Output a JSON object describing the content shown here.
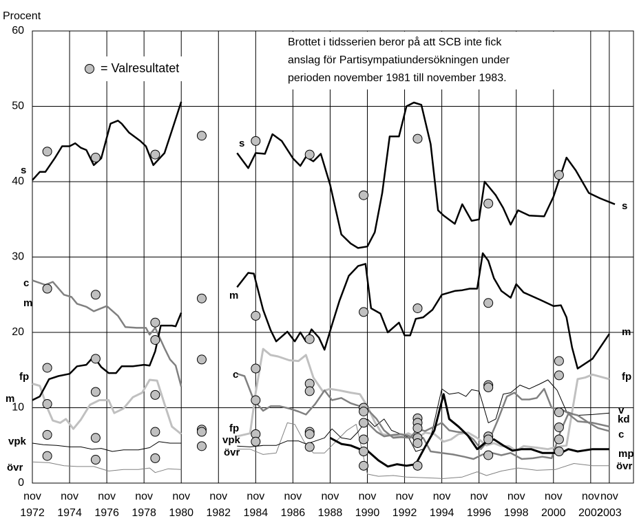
{
  "chart_data": {
    "type": "line",
    "ylabel": "Procent",
    "xlim": [
      1972.9,
      2005.2
    ],
    "ylim": [
      0,
      60
    ],
    "yticks": [
      0,
      10,
      20,
      30,
      40,
      50,
      60
    ],
    "xticks": [
      {
        "value": 1972.9,
        "label": "nov 1972"
      },
      {
        "value": 1974.9,
        "label": "nov 1974"
      },
      {
        "value": 1976.9,
        "label": "nov 1976"
      },
      {
        "value": 1978.9,
        "label": "nov 1978"
      },
      {
        "value": 1980.9,
        "label": "nov 1980"
      },
      {
        "value": 1982.9,
        "label": "nov 1982"
      },
      {
        "value": 1984.9,
        "label": "nov 1984"
      },
      {
        "value": 1986.9,
        "label": "nov 1986"
      },
      {
        "value": 1988.9,
        "label": "nov 1988"
      },
      {
        "value": 1990.9,
        "label": "nov 1990"
      },
      {
        "value": 1992.9,
        "label": "nov 1992"
      },
      {
        "value": 1994.9,
        "label": "nov 1994"
      },
      {
        "value": 1996.9,
        "label": "nov 1996"
      },
      {
        "value": 1998.9,
        "label": "nov 1998"
      },
      {
        "value": 2000.9,
        "label": "nov 2000"
      },
      {
        "value": 2002.9,
        "label": "nov 2002"
      },
      {
        "value": 2003.9,
        "label": "nov 2003"
      }
    ],
    "grid": true,
    "annotation": [
      "Brottet i tidsserien beror på att SCB inte fick",
      "anslag för Partisympatiundersökningen under",
      "perioden november 1981 till november 1983."
    ],
    "series": [
      {
        "name": "s",
        "color": "#000000",
        "x": [
          1972.9,
          1973.3,
          1973.6,
          1974.1,
          1974.5,
          1974.9,
          1975.2,
          1975.5,
          1975.8,
          1976.2,
          1976.6,
          1977.1,
          1977.5,
          1977.7,
          1978.1,
          1978.7,
          1979.0,
          1979.4,
          1980.0,
          1980.4,
          1980.9,
          1982.9,
          1983.9,
          1984.5,
          1984.9,
          1985.4,
          1985.8,
          1986.3,
          1986.9,
          1987.3,
          1987.6,
          1988.0,
          1988.4,
          1988.9,
          1989.5,
          1990.0,
          1990.4,
          1990.9,
          1991.3,
          1991.7,
          1992.1,
          1992.6,
          1993.0,
          1993.4,
          1993.8,
          1994.3,
          1994.7,
          1995.0,
          1995.6,
          1996.0,
          1996.5,
          1996.9,
          1997.2,
          1997.8,
          1998.2,
          1998.6,
          1999.0,
          1999.6,
          2000.4,
          2000.9,
          2001.6,
          2002.1,
          2002.8,
          2003.4,
          2004.2
        ],
        "values": [
          40.2,
          41.3,
          41.3,
          43.1,
          44.7,
          44.7,
          45.1,
          44.5,
          44.2,
          42.2,
          43.1,
          47.7,
          48.1,
          47.7,
          46.5,
          45.4,
          44.7,
          42.2,
          43.8,
          46.8,
          50.6,
          null,
          43.8,
          41.8,
          43.8,
          43.7,
          46.3,
          45.4,
          43.1,
          42.1,
          43.3,
          42.7,
          43.7,
          39.6,
          33.0,
          31.8,
          31.2,
          31.4,
          33.3,
          38.5,
          46.0,
          46.0,
          50.0,
          50.5,
          50.2,
          45.0,
          36.2,
          35.5,
          34.4,
          37.0,
          34.8,
          35.0,
          40.0,
          38.2,
          36.5,
          34.3,
          36.2,
          35.5,
          35.4,
          38.0,
          43.2,
          41.5,
          38.5,
          37.8,
          37.0
        ]
      },
      {
        "name": "m",
        "color": "#000000",
        "x": [
          1972.9,
          1973.3,
          1973.8,
          1974.3,
          1974.9,
          1975.3,
          1975.8,
          1976.2,
          1976.6,
          1977.0,
          1977.4,
          1977.7,
          1978.3,
          1978.9,
          1979.2,
          1979.5,
          1979.8,
          1980.4,
          1980.6,
          1980.9,
          1982.9,
          1983.9,
          1984.5,
          1984.8,
          1985.3,
          1985.7,
          1986.0,
          1986.6,
          1987.0,
          1987.3,
          1987.6,
          1987.9,
          1988.3,
          1988.6,
          1989.0,
          1989.4,
          1989.9,
          1990.4,
          1990.8,
          1991.1,
          1991.6,
          1992.0,
          1992.6,
          1992.9,
          1993.2,
          1993.5,
          1993.9,
          1994.4,
          1994.9,
          1995.6,
          1996.0,
          1996.4,
          1996.8,
          1997.1,
          1997.4,
          1997.7,
          1998.1,
          1998.6,
          1998.9,
          1999.3,
          2000.2,
          2000.9,
          2001.3,
          2001.6,
          2001.9,
          2002.2,
          2003.0,
          2003.9
        ],
        "values": [
          11.0,
          11.5,
          13.8,
          14.2,
          14.5,
          15.5,
          15.7,
          16.8,
          15.4,
          14.6,
          14.6,
          15.5,
          15.5,
          15.7,
          15.6,
          17.5,
          20.9,
          20.9,
          20.8,
          22.6,
          null,
          26.0,
          27.9,
          27.8,
          23.0,
          20.3,
          18.8,
          20.1,
          18.8,
          20.0,
          18.8,
          20.4,
          19.3,
          17.7,
          21.0,
          24.2,
          27.5,
          28.8,
          29.1,
          23.2,
          22.5,
          20.0,
          21.3,
          19.6,
          19.6,
          21.8,
          22.0,
          23.0,
          25.0,
          25.5,
          25.6,
          25.8,
          25.8,
          30.5,
          29.5,
          27.2,
          25.5,
          24.6,
          26.4,
          25.3,
          24.3,
          23.5,
          23.6,
          22.0,
          18.0,
          15.2,
          16.5,
          19.8
        ]
      },
      {
        "name": "c",
        "color": "#808080",
        "x": [
          1972.9,
          1973.6,
          1974.0,
          1974.6,
          1975.0,
          1975.3,
          1975.8,
          1976.2,
          1976.9,
          1977.5,
          1977.9,
          1978.5,
          1979.0,
          1979.2,
          1979.5,
          1980.0,
          1980.3,
          1980.6,
          1980.9,
          1982.9,
          1983.9,
          1984.3,
          1984.8,
          1985.3,
          1985.7,
          1986.2,
          1986.7,
          1987.2,
          1987.6,
          1988.1,
          1988.6,
          1989.0,
          1989.5,
          1990.0,
          1990.5,
          1990.9,
          1991.4,
          1991.8,
          1992.3,
          1992.7,
          1993.2,
          1993.6,
          1994.0,
          1994.5,
          1994.9,
          1995.3,
          1995.7,
          1996.1,
          1996.6,
          1997.0,
          1997.5,
          1997.9,
          1998.4,
          1998.8,
          1999.2,
          1999.6,
          2000.0,
          2000.4,
          2000.8,
          2001.3,
          2001.7,
          2002.2,
          2002.8,
          2003.3,
          2003.9
        ],
        "values": [
          26.9,
          26.3,
          26.7,
          25.0,
          24.7,
          23.8,
          23.4,
          22.8,
          23.5,
          22.2,
          20.7,
          20.6,
          20.6,
          19.7,
          20.6,
          17.9,
          16.4,
          15.6,
          12.8,
          null,
          14.5,
          14.2,
          11.0,
          9.6,
          10.2,
          10.2,
          9.9,
          9.5,
          9.1,
          10.5,
          12.3,
          11.0,
          11.3,
          10.6,
          10.2,
          9.8,
          8.5,
          7.0,
          6.0,
          6.1,
          6.0,
          7.2,
          6.9,
          7.5,
          8.0,
          7.0,
          6.8,
          6.7,
          5.8,
          4.5,
          6.0,
          8.3,
          11.5,
          12.0,
          11.1,
          11.1,
          11.3,
          12.5,
          10.0,
          9.8,
          9.3,
          9.0,
          8.0,
          7.3,
          6.9
        ]
      },
      {
        "name": "fp",
        "color": "#c0c0c0",
        "x": [
          1972.9,
          1973.3,
          1973.7,
          1974.0,
          1974.4,
          1974.7,
          1975.1,
          1975.5,
          1976.0,
          1976.5,
          1977.0,
          1977.3,
          1977.8,
          1978.3,
          1978.8,
          1979.2,
          1979.6,
          1980.0,
          1980.4,
          1980.9,
          1982.9,
          1983.9,
          1984.6,
          1984.9,
          1985.3,
          1985.7,
          1986.1,
          1986.7,
          1987.2,
          1987.6,
          1988.0,
          1988.5,
          1988.9,
          1989.4,
          1990.0,
          1990.5,
          1990.9,
          1991.3,
          1991.7,
          1992.2,
          1992.7,
          1993.1,
          1993.6,
          1994.0,
          1994.5,
          1995.0,
          1995.4,
          1995.8,
          1996.3,
          1996.8,
          1997.3,
          1997.7,
          1998.1,
          1998.5,
          1998.9,
          1999.3,
          2000.0,
          2000.6,
          2001.1,
          2001.6,
          2002.2,
          2002.6,
          2003.0,
          2003.9
        ],
        "values": [
          13.2,
          12.9,
          10.0,
          8.3,
          8.0,
          8.5,
          7.2,
          8.4,
          10.4,
          11.0,
          11.0,
          9.3,
          9.9,
          11.4,
          12.0,
          13.7,
          13.6,
          10.5,
          7.5,
          6.5,
          null,
          6.2,
          6.6,
          12.0,
          17.8,
          17.0,
          16.8,
          16.3,
          16.2,
          17.0,
          14.0,
          12.2,
          12.5,
          12.3,
          12.0,
          11.8,
          10.2,
          8.1,
          6.5,
          6.3,
          6.2,
          6.6,
          6.0,
          6.7,
          6.5,
          5.5,
          5.8,
          6.5,
          6.7,
          6.0,
          5.0,
          5.3,
          4.9,
          4.9,
          4.3,
          4.9,
          4.7,
          4.5,
          4.8,
          5.0,
          13.8,
          14.0,
          14.4,
          13.8
        ]
      },
      {
        "name": "vpk",
        "end_label": "v",
        "color": "#000000",
        "x": [
          1972.9,
          1973.5,
          1974.2,
          1974.9,
          1975.5,
          1976.1,
          1976.6,
          1977.2,
          1977.8,
          1978.6,
          1979.2,
          1979.7,
          1980.3,
          1980.9,
          1982.9,
          1983.9,
          1984.6,
          1985.3,
          1986.0,
          1986.6,
          1987.2,
          1987.6,
          1988.0,
          1988.6,
          1989.0,
          1989.5,
          1990.0,
          1990.4,
          1990.9,
          1991.3,
          1991.8,
          1992.2,
          1992.7,
          1993.1,
          1993.5,
          1993.9,
          1994.3,
          1994.9,
          1995.3,
          1995.8,
          1996.2,
          1996.5,
          1996.9,
          1997.4,
          1997.8,
          1998.2,
          1998.6,
          1999.1,
          1999.6,
          2000.2,
          2000.6,
          2001.1,
          2001.6,
          2002.2,
          2003.0,
          2003.9
        ],
        "values": [
          5.3,
          5.1,
          5.0,
          4.8,
          4.8,
          4.5,
          4.6,
          4.2,
          4.4,
          4.4,
          4.7,
          5.5,
          5.3,
          5.3,
          null,
          4.9,
          4.8,
          5.0,
          5.0,
          5.6,
          5.6,
          5.2,
          5.5,
          6.0,
          7.2,
          6.0,
          5.8,
          6.8,
          8.5,
          7.5,
          8.5,
          7.0,
          6.5,
          6.1,
          4.2,
          4.5,
          6.0,
          12.5,
          11.8,
          12.0,
          11.5,
          12.4,
          12.2,
          8.0,
          8.5,
          11.8,
          12.0,
          13.0,
          12.5,
          13.2,
          13.7,
          12.3,
          9.5,
          9.0,
          9.1,
          9.3
        ]
      },
      {
        "name": "kd",
        "color": "#808080",
        "x": [
          1990.9,
          1991.4,
          1991.8,
          1992.3,
          1992.7,
          1993.1,
          1993.5,
          1993.9,
          1994.3,
          1994.9,
          1995.5,
          1996.1,
          1996.6,
          1997.1,
          1997.6,
          1998.1,
          1998.6,
          1999.2,
          1999.8,
          2000.3,
          2000.8,
          2001.3,
          2001.7,
          2002.2,
          2003.0,
          2003.9
        ],
        "values": [
          8.0,
          6.8,
          6.2,
          6.4,
          6.5,
          6.3,
          5.8,
          6.0,
          4.2,
          4.0,
          3.8,
          3.5,
          3.2,
          3.8,
          4.0,
          3.7,
          4.0,
          3.2,
          3.3,
          3.5,
          3.3,
          7.0,
          9.2,
          8.2,
          8.0,
          7.5
        ]
      },
      {
        "name": "mp",
        "color": "#000000",
        "x": [
          1988.9,
          1989.5,
          1990.0,
          1990.5,
          1990.9,
          1991.5,
          1992.0,
          1992.5,
          1993.0,
          1993.5,
          1994.0,
          1994.5,
          1995.0,
          1995.3,
          1995.8,
          1996.3,
          1996.8,
          1997.3,
          1997.7,
          1998.2,
          1998.7,
          1999.2,
          1999.7,
          2000.3,
          2000.8,
          2001.3,
          2001.7,
          2002.2,
          2003.0,
          2003.9
        ],
        "values": [
          6.0,
          5.2,
          5.0,
          4.5,
          4.3,
          3.0,
          2.2,
          2.5,
          2.3,
          2.5,
          4.8,
          7.0,
          11.8,
          8.5,
          7.5,
          6.3,
          4.5,
          5.5,
          5.8,
          5.0,
          4.3,
          4.5,
          4.5,
          4.0,
          4.0,
          4.0,
          4.5,
          4.2,
          4.5,
          4.5
        ]
      },
      {
        "name": "övr",
        "color": "#808080",
        "x": [
          1972.9,
          1973.8,
          1974.6,
          1975.3,
          1976.2,
          1977.0,
          1977.8,
          1978.6,
          1979.2,
          1979.5,
          1980.2,
          1980.9,
          1982.9,
          1983.9,
          1984.6,
          1985.3,
          1986.0,
          1986.6,
          1987.0,
          1987.5,
          1988.0,
          1988.6,
          1989.2,
          1989.8,
          1990.3,
          1990.9,
          1991.5,
          1992.3,
          1993.0,
          1994.0,
          1995.0,
          1996.0,
          1996.8,
          1997.3,
          1998.1,
          1999.0,
          2000.0,
          2001.0,
          2002.0,
          2003.0,
          2003.9
        ],
        "values": [
          2.8,
          2.7,
          2.3,
          2.2,
          2.2,
          1.6,
          1.8,
          1.8,
          2.0,
          1.4,
          1.9,
          1.8,
          null,
          4.5,
          4.5,
          3.8,
          4.0,
          8.0,
          7.8,
          5.5,
          4.0,
          4.0,
          5.5,
          7.0,
          7.8,
          1.2,
          0.9,
          1.0,
          0.8,
          0.7,
          0.6,
          0.8,
          1.5,
          1.0,
          1.6,
          2.0,
          1.7,
          1.8,
          2.6,
          2.3,
          2.3
        ]
      }
    ],
    "markers": {
      "name": "= Valresultatet",
      "color": "#c0c0c0",
      "x": [
        1973.7,
        1973.7,
        1973.7,
        1973.7,
        1973.7,
        1973.7,
        1976.3,
        1976.3,
        1976.3,
        1976.3,
        1976.3,
        1976.3,
        1979.5,
        1979.5,
        1979.5,
        1979.5,
        1979.5,
        1979.5,
        1982.0,
        1982.0,
        1982.0,
        1982.0,
        1982.0,
        1982.0,
        1984.9,
        1984.9,
        1984.9,
        1984.9,
        1984.9,
        1984.9,
        1987.8,
        1987.8,
        1987.8,
        1987.8,
        1987.8,
        1987.8,
        1987.8,
        1990.7,
        1990.7,
        1990.7,
        1990.7,
        1990.7,
        1990.7,
        1990.7,
        1990.7,
        1993.6,
        1993.6,
        1993.6,
        1993.6,
        1993.6,
        1993.6,
        1993.6,
        1993.6,
        1997.4,
        1997.4,
        1997.4,
        1997.4,
        1997.4,
        1997.4,
        1997.4,
        2001.2,
        2001.2,
        2001.2,
        2001.2,
        2001.2,
        2001.2,
        2001.2
      ],
      "values": [
        44.0,
        25.8,
        15.3,
        10.5,
        6.4,
        3.6,
        43.2,
        25.0,
        16.5,
        12.1,
        6.0,
        3.1,
        43.6,
        21.3,
        19.0,
        11.7,
        6.8,
        3.3,
        46.1,
        24.5,
        16.4,
        7.1,
        6.8,
        4.9,
        45.4,
        22.2,
        15.2,
        11.0,
        6.5,
        5.5,
        43.6,
        19.1,
        13.2,
        12.2,
        6.8,
        6.5,
        4.8,
        38.2,
        22.7,
        10.0,
        9.5,
        8.0,
        5.8,
        4.2,
        2.3,
        45.7,
        23.2,
        8.6,
        8.0,
        7.3,
        6.0,
        5.3,
        2.3,
        37.1,
        23.9,
        13.0,
        12.7,
        6.2,
        5.8,
        3.7,
        40.9,
        16.2,
        14.3,
        9.4,
        7.4,
        5.8,
        4.2
      ]
    }
  }
}
